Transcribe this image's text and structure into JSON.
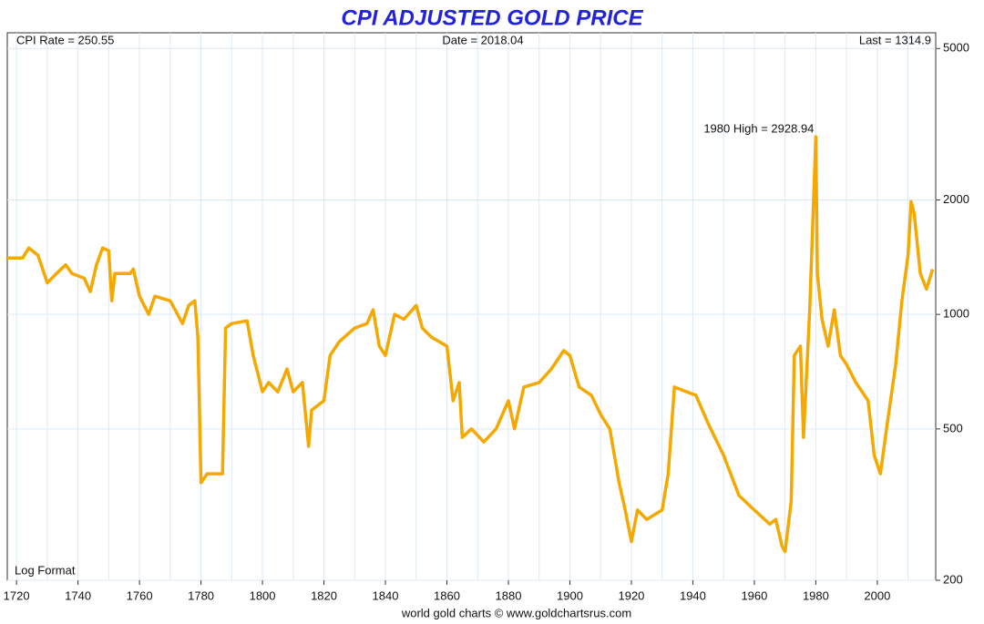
{
  "chart_data": {
    "type": "line",
    "title": "CPI ADJUSTED GOLD PRICE",
    "annotations": {
      "cpi": "CPI Rate = 250.55",
      "date": "Date = 2018.04",
      "last": "Last = 1314.9",
      "high": "1980 High = 2928.94",
      "format": "Log Format",
      "source": "world gold charts © www.goldchartsrus.com"
    },
    "log_scale": true,
    "grid": true,
    "xlim": [
      1717,
      2019
    ],
    "xticks": [
      1720,
      1740,
      1760,
      1780,
      1800,
      1820,
      1840,
      1860,
      1880,
      1900,
      1920,
      1940,
      1960,
      1980,
      2000
    ],
    "xminorticks": [
      1730,
      1750,
      1770,
      1790,
      1810,
      1830,
      1850,
      1870,
      1890,
      1910,
      1930,
      1950,
      1970,
      1990,
      2010
    ],
    "ylim": [
      200,
      5500
    ],
    "yticks": [
      200,
      500,
      1000,
      2000,
      5000
    ],
    "series": [
      {
        "name": "CPI adjusted gold price",
        "color": "#f5a800",
        "x": [
          1717,
          1722,
          1724,
          1727,
          1730,
          1733,
          1736,
          1738,
          1742,
          1744,
          1746,
          1748,
          1750,
          1751,
          1752,
          1757,
          1758,
          1760,
          1763,
          1765,
          1770,
          1774,
          1776,
          1778,
          1779,
          1780,
          1782,
          1787,
          1788,
          1790,
          1795,
          1797,
          1800,
          1802,
          1805,
          1808,
          1810,
          1813,
          1815,
          1816,
          1820,
          1822,
          1825,
          1830,
          1834,
          1836,
          1838,
          1840,
          1843,
          1846,
          1850,
          1852,
          1855,
          1860,
          1862,
          1864,
          1865,
          1868,
          1872,
          1876,
          1880,
          1882,
          1885,
          1890,
          1894,
          1898,
          1900,
          1903,
          1907,
          1910,
          1913,
          1916,
          1918,
          1920,
          1922,
          1925,
          1930,
          1932,
          1934,
          1938,
          1941,
          1945,
          1950,
          1955,
          1960,
          1965,
          1967,
          1969,
          1970,
          1972,
          1973,
          1975,
          1976,
          1978,
          1980,
          1980.5,
          1982,
          1984,
          1986,
          1988,
          1990,
          1993,
          1997,
          1999,
          2001,
          2003,
          2006,
          2008,
          2010,
          2011,
          2012,
          2014,
          2016,
          2018
        ],
        "values": [
          1407,
          1407,
          1495,
          1430,
          1210,
          1281,
          1350,
          1281,
          1245,
          1148,
          1350,
          1495,
          1470,
          1086,
          1281,
          1281,
          1316,
          1116,
          1000,
          1116,
          1086,
          946,
          1056,
          1086,
          871,
          361,
          381,
          381,
          921,
          946,
          962,
          780,
          626,
          662,
          626,
          719,
          626,
          662,
          450,
          560,
          593,
          780,
          848,
          921,
          946,
          1028,
          825,
          780,
          1000,
          971,
          1056,
          921,
          871,
          825,
          593,
          662,
          475,
          500,
          462,
          500,
          593,
          500,
          644,
          662,
          719,
          803,
          780,
          644,
          613,
          546,
          500,
          361,
          306,
          253,
          306,
          289,
          306,
          381,
          644,
          626,
          613,
          516,
          426,
          334,
          306,
          281,
          289,
          246,
          238,
          323,
          780,
          825,
          475,
          1028,
          2929,
          1281,
          971,
          825,
          1028,
          780,
          739,
          662,
          593,
          426,
          381,
          500,
          739,
          1086,
          1430,
          1980,
          1840,
          1281,
          1165,
          1314.9
        ]
      }
    ]
  }
}
